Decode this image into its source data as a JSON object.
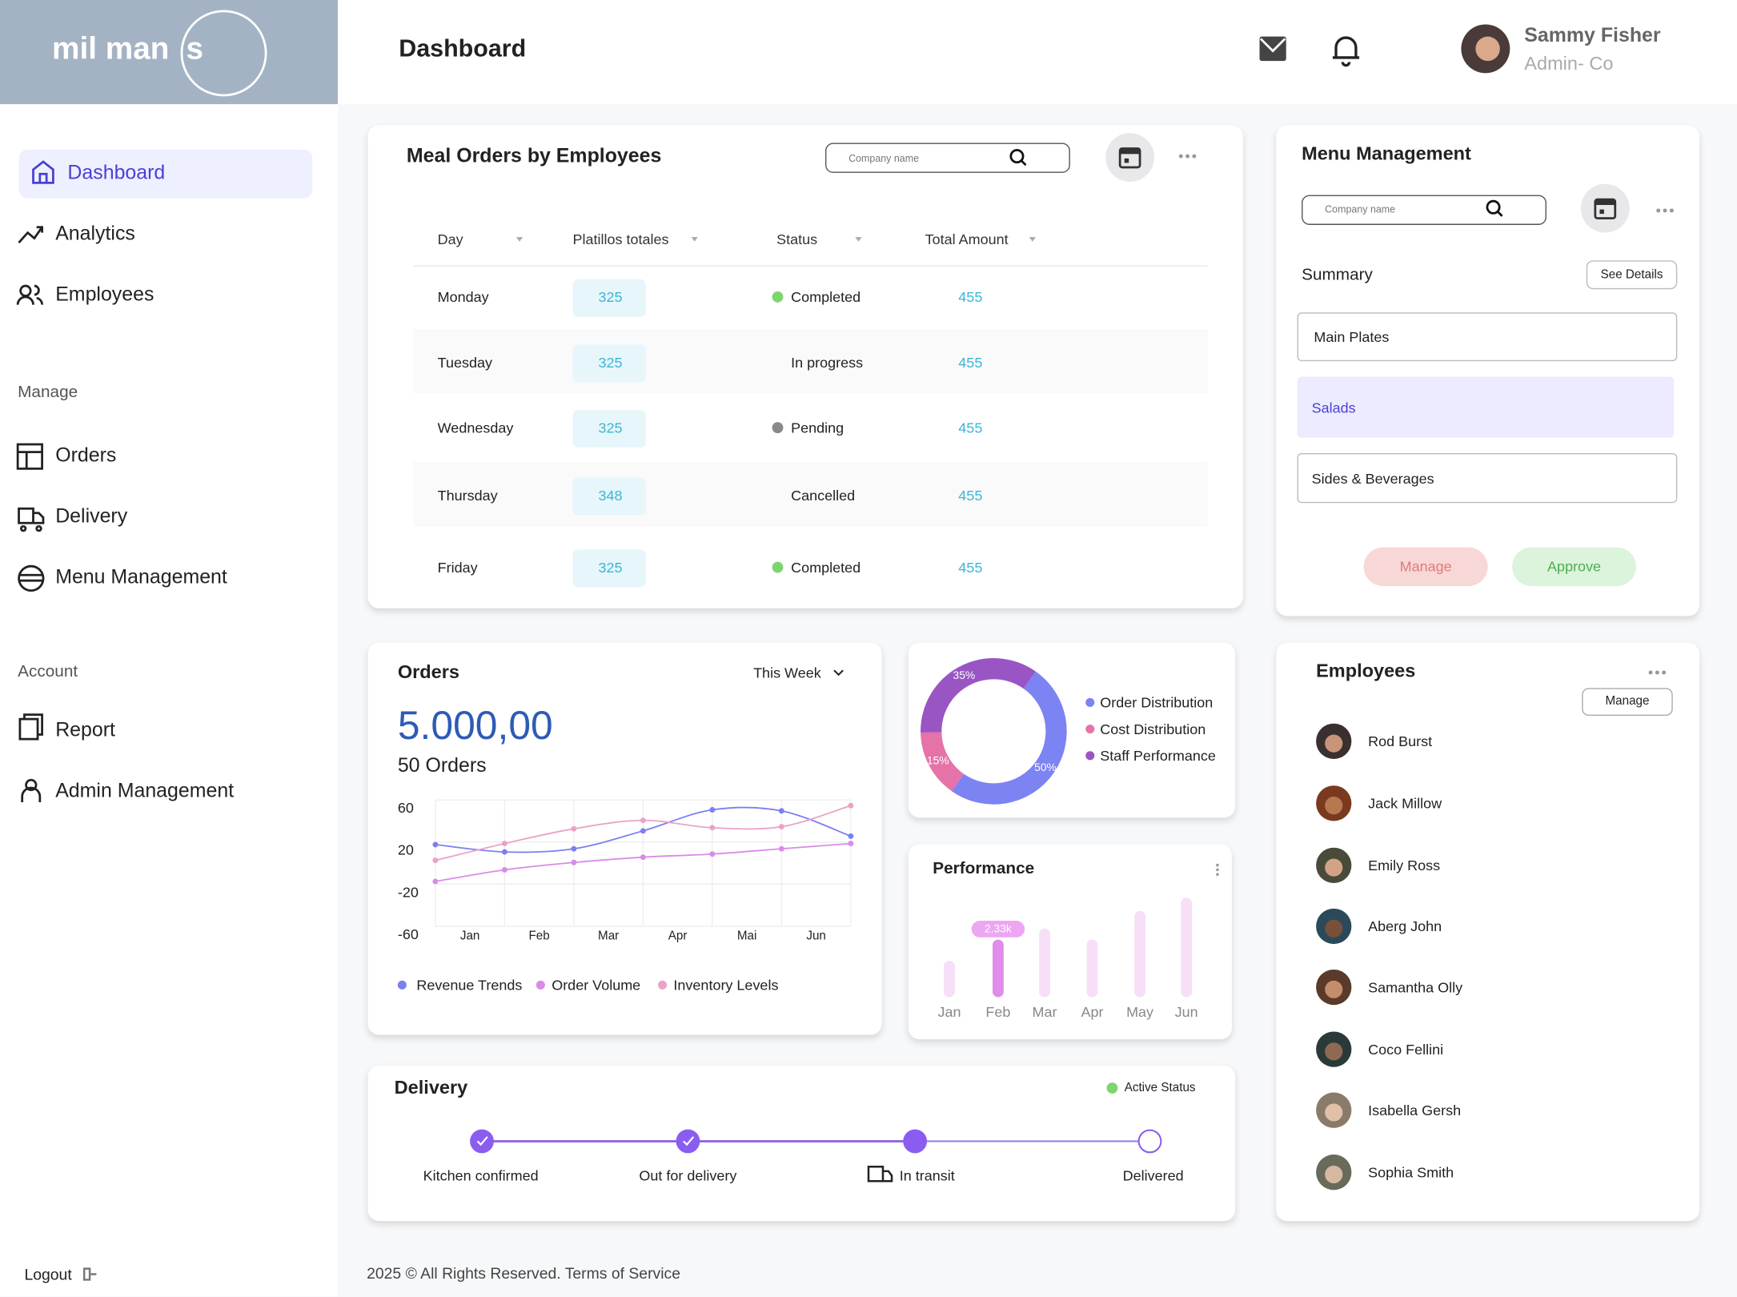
{
  "brand": {
    "text": "mil man",
    "last_letter": "s"
  },
  "header": {
    "title": "Dashboard",
    "user": {
      "name": "Sammy Fisher",
      "role": "Admin- Co"
    }
  },
  "sidebar": {
    "main": [
      "Dashboard",
      "Analytics",
      "Employees"
    ],
    "manage_label": "Manage",
    "manage": [
      "Orders",
      "Delivery",
      "Menu Management"
    ],
    "account_label": "Account",
    "account": [
      "Report",
      "Admin Management"
    ],
    "logout": "Logout"
  },
  "meal_orders": {
    "title": "Meal Orders by Employees",
    "search_placeholder": "Company name",
    "columns": [
      "Day",
      "Platillos totales",
      "Status",
      "Total Amount"
    ],
    "rows": [
      {
        "day": "Monday",
        "dishes": 325,
        "status": "Completed",
        "status_color": "#7ed56f",
        "amount": 455
      },
      {
        "day": "Tuesday",
        "dishes": 325,
        "status": "In progress",
        "status_color": "#f6e27f",
        "amount": 455
      },
      {
        "day": "Wednesday",
        "dishes": 325,
        "status": "Pending",
        "status_color": "#8a8a8a",
        "amount": 455
      },
      {
        "day": "Thursday",
        "dishes": 348,
        "status": "Cancelled",
        "status_color": "#e53935",
        "amount": 455
      },
      {
        "day": "Friday",
        "dishes": 325,
        "status": "Completed",
        "status_color": "#7ed56f",
        "amount": 455
      }
    ]
  },
  "menu_management": {
    "title": "Menu Management",
    "search_placeholder": "Company name",
    "summary": "Summary",
    "details_button": "See Details",
    "items": [
      "Main Plates",
      "Salads",
      "Sides & Beverages"
    ],
    "buttons": [
      "Manage",
      "Approve"
    ]
  },
  "orders": {
    "title": "Orders",
    "period": "This Week",
    "total": "5.000,00",
    "count": "50 Orders"
  },
  "chart_data": [
    {
      "type": "line",
      "categories": [
        "Jan",
        "Feb",
        "Mar",
        "Apr",
        "Mai",
        "Jun",
        null
      ],
      "series": [
        {
          "name": "Revenue Trends",
          "color": "#7b7ff0",
          "values": [
            25,
            18,
            21,
            38,
            58,
            57,
            33
          ]
        },
        {
          "name": "Order Volume",
          "color": "#d98be8",
          "values": [
            -10,
            1,
            8,
            13,
            16,
            21,
            26
          ]
        },
        {
          "name": "Inventory Levels",
          "color": "#eaa3c8",
          "values": [
            10,
            26,
            40,
            48,
            41,
            42,
            62
          ]
        }
      ],
      "ylim": [
        -60,
        60
      ],
      "yticks": [
        60,
        20,
        -20,
        -60
      ],
      "grid": true,
      "legend": "bottom"
    },
    {
      "type": "pie",
      "donut": true,
      "categories": [
        "Order Distribution",
        "Cost Distribution",
        "Staff Performance"
      ],
      "values": [
        50,
        15,
        35
      ],
      "value_labels": [
        "50%",
        "15%",
        "35%"
      ],
      "colors": [
        "#7c83f3",
        "#e573a8",
        "#9a55c4"
      ],
      "legend": "right"
    },
    {
      "type": "bar",
      "title": "Performance",
      "categories": [
        "Jan",
        "Feb",
        "Mar",
        "Apr",
        "May",
        "Jun"
      ],
      "values": [
        1480,
        2330,
        2780,
        2330,
        3490,
        4030
      ],
      "value_labels": [
        null,
        "2.33k",
        null,
        null,
        null,
        null
      ],
      "color": "#f6dff7",
      "highlight_color": "#e08cea"
    }
  ],
  "delivery": {
    "title": "Delivery",
    "status_label": "Active Status",
    "steps": [
      {
        "label": "Kitchen confirmed",
        "state": "done"
      },
      {
        "label": "Out for delivery",
        "state": "done"
      },
      {
        "label": "In transit",
        "state": "current"
      },
      {
        "label": "Delivered",
        "state": "pending"
      }
    ]
  },
  "employees": {
    "title": "Employees",
    "button": "Manage",
    "names": [
      "Rod Burst",
      "Jack Millow",
      "Emily Ross",
      "Aberg John",
      "Samantha Olly",
      "Coco Fellini",
      "Isabella Gersh",
      "Sophia Smith"
    ]
  },
  "footer": "2025 © All Rights Reserved. Terms of Service"
}
